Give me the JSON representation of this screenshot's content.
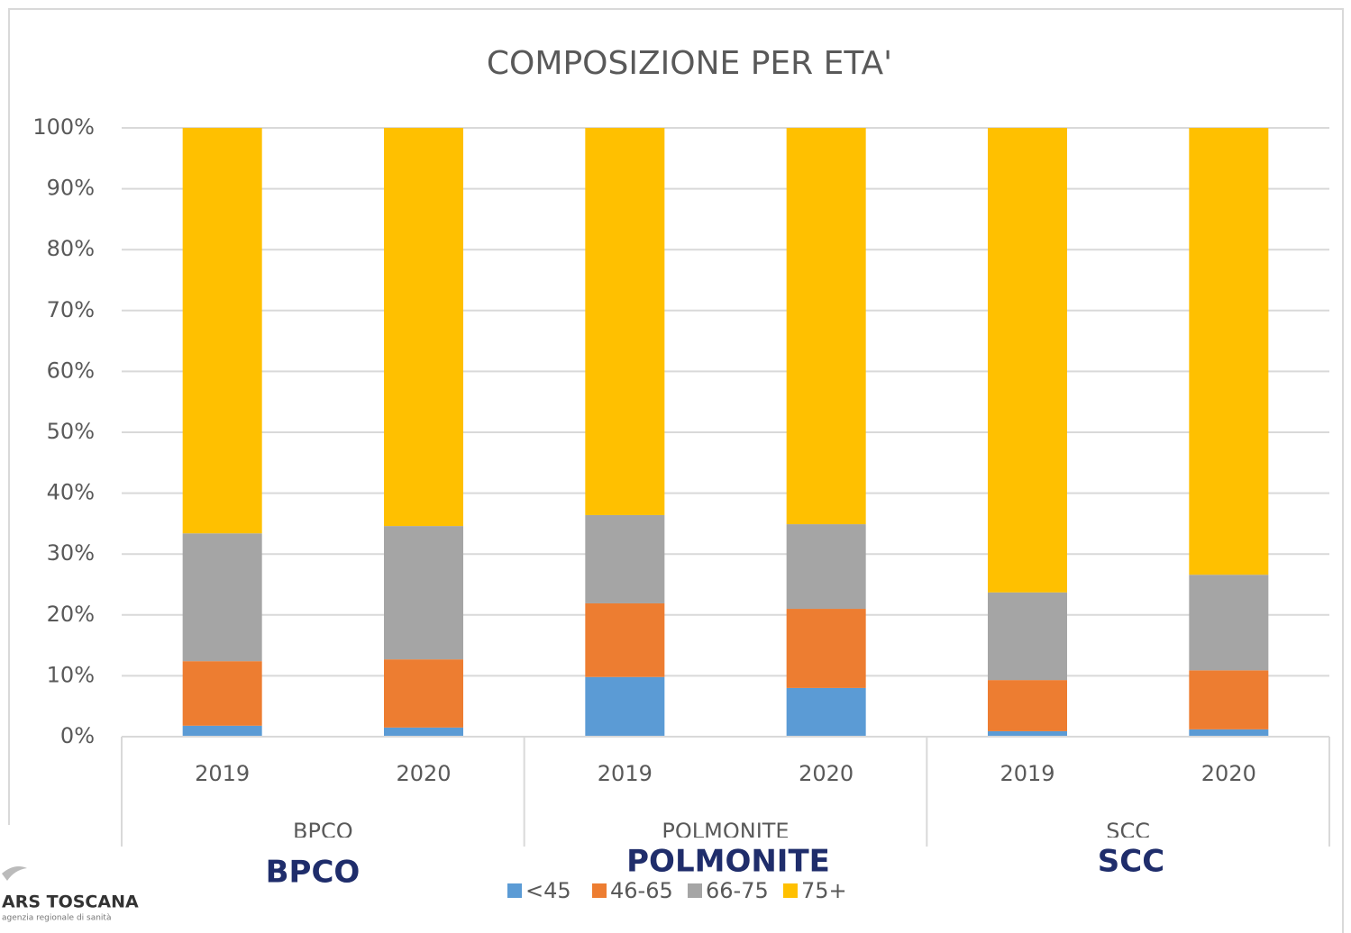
{
  "chart_data": {
    "type": "stacked_bar",
    "title": "COMPOSIZIONE PER ETA'",
    "categories": [
      "2019",
      "2020",
      "2019",
      "2020",
      "2019",
      "2020"
    ],
    "groups": [
      {
        "name": "BPCO",
        "size": 2
      },
      {
        "name": "POLMONITE",
        "size": 2
      },
      {
        "name": "SCC",
        "size": 2
      }
    ],
    "series": [
      {
        "name": "<45",
        "color": "#5b9bd5",
        "values": [
          1.8,
          1.5,
          9.8,
          8.0,
          0.9,
          1.2
        ]
      },
      {
        "name": "46-65",
        "color": "#ed7d31",
        "values": [
          10.6,
          11.2,
          12.1,
          13.0,
          8.4,
          9.7
        ]
      },
      {
        "name": "66-75",
        "color": "#a5a5a5",
        "values": [
          21.0,
          21.9,
          14.5,
          13.9,
          14.4,
          15.7
        ]
      },
      {
        "name": "75+",
        "color": "#ffc000",
        "values": [
          66.6,
          65.4,
          63.6,
          65.1,
          76.3,
          73.4
        ]
      }
    ],
    "ylim": [
      0,
      100
    ],
    "yticks": [
      {
        "value": 0,
        "label": "0%"
      },
      {
        "value": 10,
        "label": "10%"
      },
      {
        "value": 20,
        "label": "20%"
      },
      {
        "value": 30,
        "label": "30%"
      },
      {
        "value": 40,
        "label": "40%"
      },
      {
        "value": 50,
        "label": "50%"
      },
      {
        "value": 60,
        "label": "60%"
      },
      {
        "value": 70,
        "label": "70%"
      },
      {
        "value": 80,
        "label": "80%"
      },
      {
        "value": 90,
        "label": "90%"
      },
      {
        "value": 100,
        "label": "100%"
      }
    ],
    "grid": true,
    "legend": "bottom",
    "annotations": [
      "BPCO",
      "POLMONITE",
      "SCC"
    ]
  },
  "logo": {
    "name": "ARS TOSCANA",
    "tagline": "agenzia regionale di sanità"
  }
}
